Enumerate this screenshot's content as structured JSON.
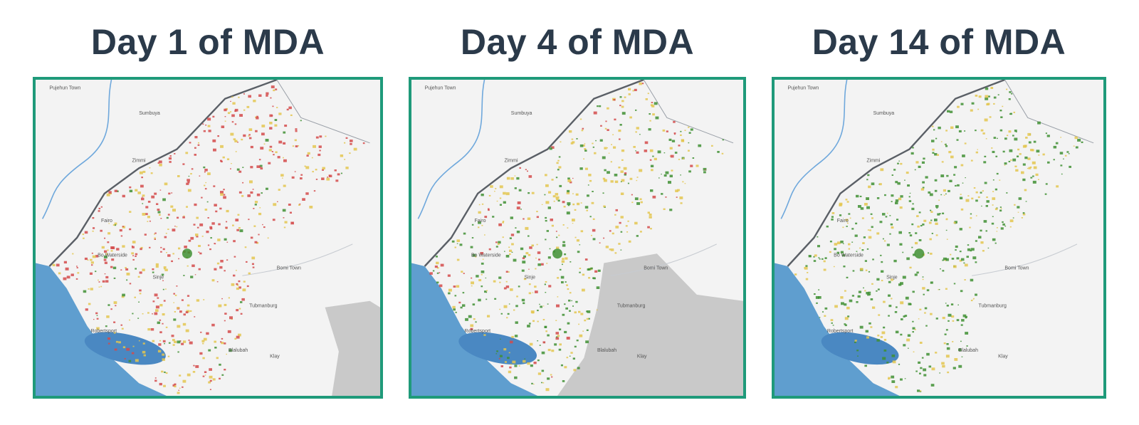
{
  "panels": [
    {
      "title": "Day 1 of MDA",
      "labels": [
        "Pujehun Town",
        "Sumbuya",
        "Zimmi",
        "Fairo",
        "Bo Waterside",
        "Bomi Town",
        "Tubmanburg",
        "Klay",
        "Robertsport",
        "Sinje",
        "Blalubah"
      ],
      "mix": {
        "red": 0.55,
        "yellow": 0.38,
        "green": 0.07
      },
      "grey_area": "east-corner"
    },
    {
      "title": "Day 4 of MDA",
      "labels": [
        "Pujehun Town",
        "Sumbuya",
        "Zimmi",
        "Fairo",
        "Bo Waterside",
        "Bomi Town",
        "Tubmanburg",
        "Klay",
        "Robertsport",
        "Sinje",
        "Blalubah"
      ],
      "mix": {
        "red": 0.15,
        "yellow": 0.5,
        "green": 0.35
      },
      "grey_area": "bomi-region"
    },
    {
      "title": "Day 14 of MDA",
      "labels": [
        "Pujehun Town",
        "Sumbuya",
        "Zimmi",
        "Fairo",
        "Bo Waterside",
        "Bomi Town",
        "Tubmanburg",
        "Klay",
        "Robertsport",
        "Sinje",
        "Blalubah"
      ],
      "mix": {
        "red": 0.0,
        "yellow": 0.38,
        "green": 0.62
      },
      "grey_area": "none"
    }
  ],
  "colors": {
    "frame": "#1f9a7a",
    "title": "#2b3a4a",
    "land": "#f3f3f3",
    "ocean": "#5f9ecf",
    "lake": "#4a88c2",
    "river": "#6fa8dc",
    "border": "#5a5f66",
    "grey": "#c9c9c9",
    "red": "#d44a4a",
    "yellow": "#e3c64f",
    "green": "#3f8f33"
  }
}
